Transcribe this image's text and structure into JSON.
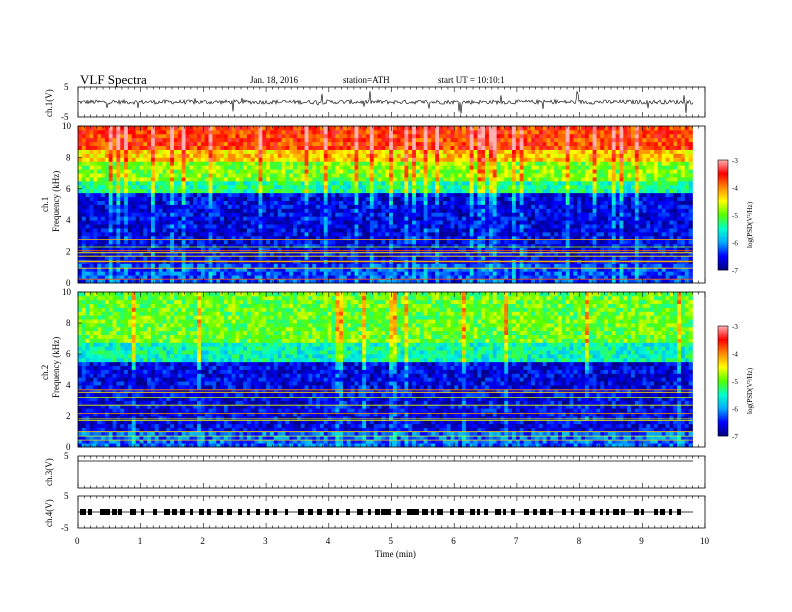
{
  "header": {
    "title": "VLF  Spectra",
    "date": "Jan. 18, 2016",
    "station": "station=ATH",
    "start": "start  UT  =    10:10:1"
  },
  "chart_data": [
    {
      "type": "line",
      "panel": "ch1-waveform",
      "ylabel": "ch.1(V)",
      "ylim": [
        -5,
        5
      ],
      "ytick_labels": [
        "5",
        "-5"
      ],
      "xlim": [
        0,
        10
      ],
      "description_values": {
        "baseline_V": 0,
        "typical_amplitude_V": 1.2,
        "spike_max_V": 4
      }
    },
    {
      "type": "heatmap",
      "panel": "ch1-spectrogram",
      "title": "",
      "channel_label": "ch.1",
      "ylabel": "Frequency  (kHz)",
      "ylim": [
        0,
        10
      ],
      "ytick_labels": [
        "0",
        "2",
        "4",
        "6",
        "8",
        "10"
      ],
      "xlim": [
        0,
        9.8
      ],
      "colorbar": {
        "label": "log(PSD(V²/Hz)",
        "range": [
          -7,
          -3
        ],
        "tick_labels": [
          "-3",
          "-4",
          "-5",
          "-6",
          "-7"
        ]
      },
      "band_profile": [
        {
          "freq_kHz": [
            0,
            1.2
          ],
          "logPSD": -6.3
        },
        {
          "freq_kHz": [
            1.2,
            5.8
          ],
          "logPSD": -6.6
        },
        {
          "freq_kHz": [
            5.8,
            6.6
          ],
          "logPSD": -5.4
        },
        {
          "freq_kHz": [
            6.6,
            7.8
          ],
          "logPSD": -4.9
        },
        {
          "freq_kHz": [
            7.8,
            8.6
          ],
          "logPSD": -4.3
        },
        {
          "freq_kHz": [
            8.6,
            10
          ],
          "logPSD": -3.7
        }
      ]
    },
    {
      "type": "heatmap",
      "panel": "ch2-spectrogram",
      "title": "",
      "channel_label": "ch.2",
      "ylabel": "Frequency  (kHz)",
      "ylim": [
        0,
        10
      ],
      "ytick_labels": [
        "0",
        "2",
        "4",
        "6",
        "8",
        "10"
      ],
      "xlim": [
        0,
        9.8
      ],
      "colorbar": {
        "label": "log(PSD(V²/Hz)",
        "range": [
          -7,
          -3
        ],
        "tick_labels": [
          "-3",
          "-4",
          "-5",
          "-6",
          "-7"
        ]
      },
      "band_profile": [
        {
          "freq_kHz": [
            0,
            1.0
          ],
          "logPSD": -6.2
        },
        {
          "freq_kHz": [
            1.0,
            5.6
          ],
          "logPSD": -6.6
        },
        {
          "freq_kHz": [
            5.6,
            6.8
          ],
          "logPSD": -5.5
        },
        {
          "freq_kHz": [
            6.8,
            10
          ],
          "logPSD": -5.0
        }
      ]
    },
    {
      "type": "line",
      "panel": "ch3-waveform",
      "ylabel": "ch.3(V)",
      "ylim": [
        -5,
        5
      ],
      "ytick_labels": [
        "5"
      ],
      "xlim": [
        0,
        10
      ],
      "description_values": {
        "baseline_V": 0
      }
    },
    {
      "type": "line",
      "panel": "ch4-waveform",
      "ylabel": "ch.4(V)",
      "ylim": [
        -5,
        5
      ],
      "ytick_labels": [
        "5",
        "-5"
      ],
      "xlim": [
        0,
        10
      ],
      "description_values": {
        "baseline_V": 0
      }
    }
  ],
  "xaxis": {
    "label": "Time  (min)",
    "tick_labels": [
      "0",
      "1",
      "2",
      "3",
      "4",
      "5",
      "6",
      "7",
      "8",
      "9",
      "10"
    ]
  },
  "colors": {
    "scale": [
      "#000080",
      "#0000ff",
      "#00aaff",
      "#00ffcc",
      "#55ff00",
      "#ffff00",
      "#ff8800",
      "#ff0000",
      "#ffb0b0"
    ]
  }
}
